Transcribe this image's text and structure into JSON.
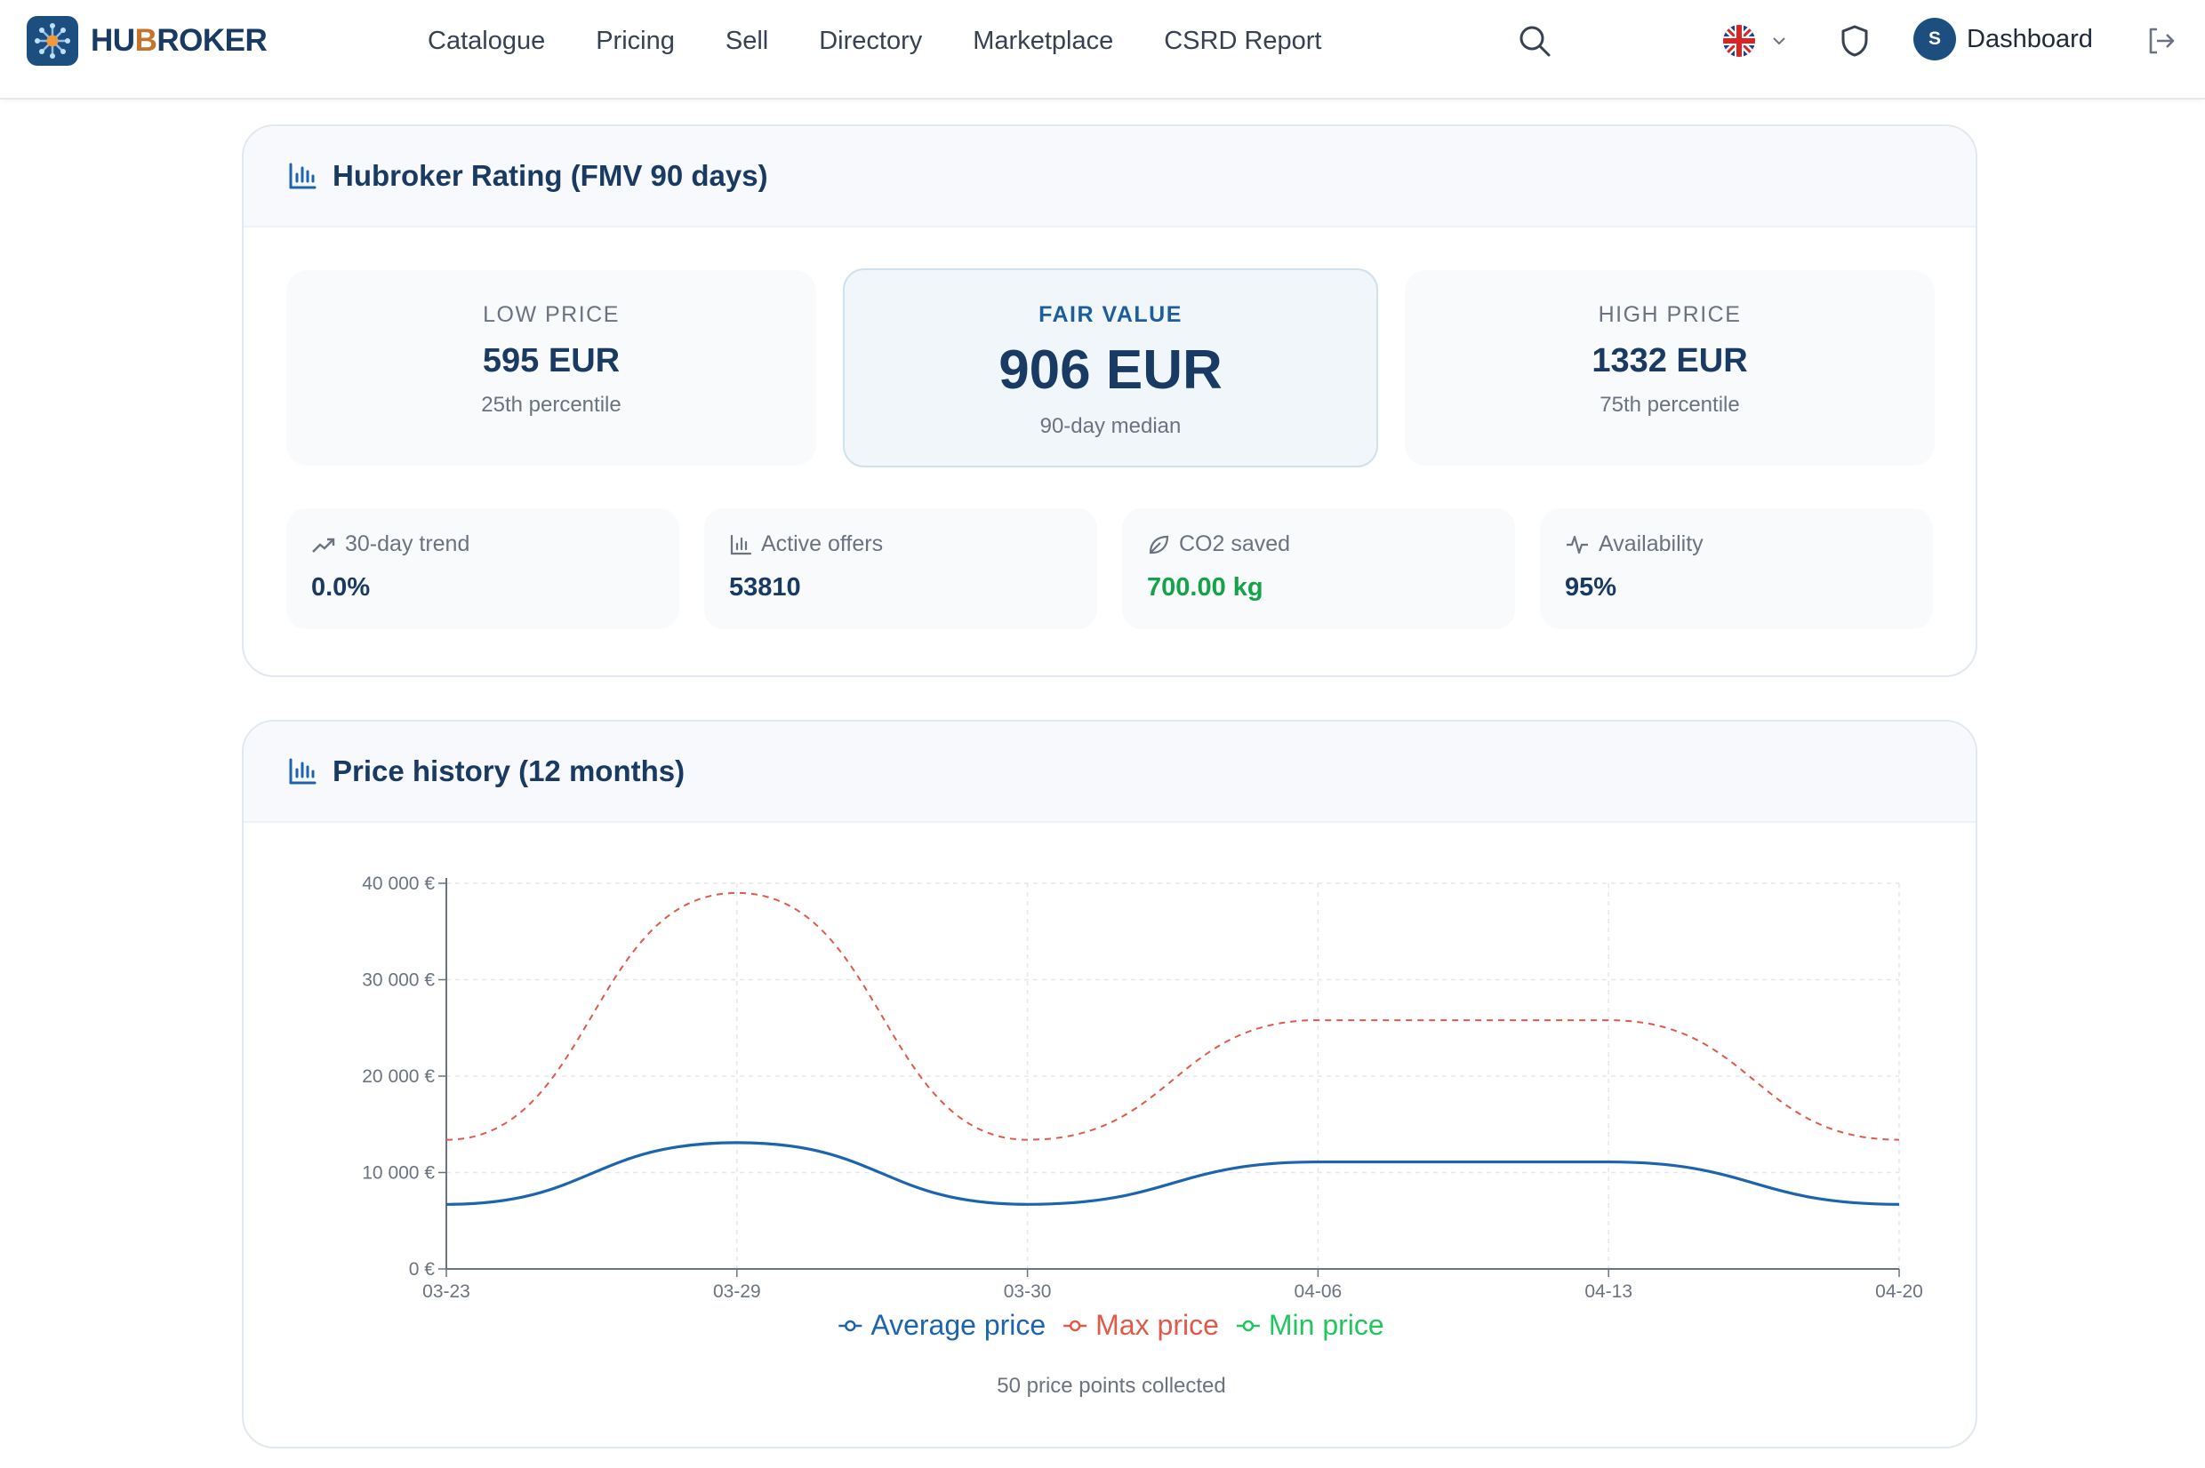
{
  "brand": {
    "name_a": "HU",
    "name_b": "B",
    "name_c": "ROKER"
  },
  "nav": {
    "items": [
      {
        "label": "Catalogue"
      },
      {
        "label": "Pricing"
      },
      {
        "label": "Sell"
      },
      {
        "label": "Directory"
      },
      {
        "label": "Marketplace"
      },
      {
        "label": "CSRD Report"
      }
    ]
  },
  "user": {
    "initial": "S",
    "dashboard_label": "Dashboard"
  },
  "rating": {
    "title": "Hubroker Rating (FMV 90 days)",
    "low": {
      "label": "LOW PRICE",
      "value": "595 EUR",
      "sub": "25th percentile"
    },
    "fair": {
      "label": "FAIR VALUE",
      "value": "906 EUR",
      "sub": "90-day median"
    },
    "high": {
      "label": "HIGH PRICE",
      "value": "1332 EUR",
      "sub": "75th percentile"
    },
    "stats": {
      "trend": {
        "label": "30-day trend",
        "value": "0.0%"
      },
      "offers": {
        "label": "Active offers",
        "value": "53810"
      },
      "co2": {
        "label": "CO2 saved",
        "value": "700.00 kg"
      },
      "availability": {
        "label": "Availability",
        "value": "95%"
      }
    }
  },
  "history": {
    "title": "Price history (12 months)",
    "footnote": "50 price points collected"
  },
  "chart_data": {
    "type": "line",
    "x": [
      "03-23",
      "03-29",
      "03-30",
      "04-06",
      "04-13",
      "04-20"
    ],
    "y_ticks": [
      "0 €",
      "10 000 €",
      "20 000 €",
      "30 000 €",
      "40 000 €"
    ],
    "ylim": [
      0,
      40000
    ],
    "grid": true,
    "legend": "bottom",
    "series": [
      {
        "name": "Average price",
        "values": [
          6700,
          13100,
          6700,
          11100,
          11100,
          6700
        ],
        "color": "#1c64ae",
        "style": "solid"
      },
      {
        "name": "Max price",
        "values": [
          13400,
          39000,
          13400,
          25800,
          25800,
          13400
        ],
        "color": "#e05a4a",
        "style": "dashed"
      },
      {
        "name": "Min price",
        "values": [
          0,
          0,
          0,
          0,
          0,
          0
        ],
        "color": "#22c55e",
        "style": "solid"
      }
    ]
  },
  "colors": {
    "brand": "#1c4e80",
    "accent": "#c8732b",
    "green": "#15a34a"
  }
}
